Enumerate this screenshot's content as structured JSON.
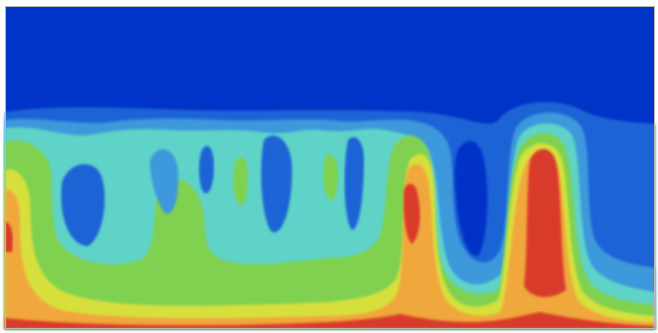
{
  "image": {
    "kind": "contour-field-plot",
    "colormap": [
      "#0033c7",
      "#1f63d6",
      "#3e98dc",
      "#5fd3c8",
      "#7fd14f",
      "#d7df3d",
      "#f0a73b",
      "#d93a2b"
    ],
    "frame_color": "#b8b8b8"
  }
}
